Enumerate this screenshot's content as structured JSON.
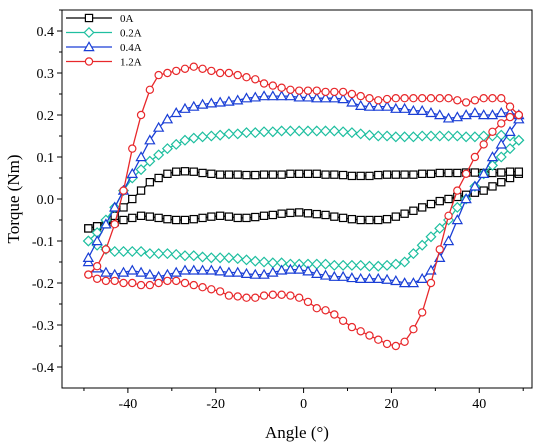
{
  "chart_data": {
    "type": "line",
    "xlabel": "Angle (°)",
    "ylabel": "Torque (Nm)",
    "xlim": [
      -55,
      52
    ],
    "ylim": [
      -0.45,
      0.45
    ],
    "xticks": [
      -40,
      -20,
      0,
      20,
      40
    ],
    "xtick_labels": [
      "-40",
      "-20",
      "0",
      "20",
      "40"
    ],
    "yticks": [
      -0.4,
      -0.3,
      -0.2,
      -0.1,
      0.0,
      0.1,
      0.2,
      0.3,
      0.4
    ],
    "ytick_labels": [
      "-0.4",
      "-0.3",
      "-0.2",
      "-0.1",
      "0.0",
      "0.1",
      "0.2",
      "0.3",
      "0.4"
    ],
    "grid": false,
    "legend_position": "top-left",
    "series": [
      {
        "name": "0A",
        "color": "#000000",
        "marker": "square",
        "x": [
          -49,
          -47,
          -45,
          -43,
          -41,
          -39,
          -37,
          -35,
          -33,
          -31,
          -29,
          -27,
          -25,
          -23,
          -21,
          -19,
          -17,
          -15,
          -13,
          -11,
          -9,
          -7,
          -5,
          -3,
          -1,
          1,
          3,
          5,
          7,
          9,
          11,
          13,
          15,
          17,
          19,
          21,
          23,
          25,
          27,
          29,
          31,
          33,
          35,
          37,
          39,
          41,
          43,
          45,
          47,
          49,
          49,
          47,
          45,
          43,
          41,
          39,
          37,
          35,
          33,
          31,
          29,
          27,
          25,
          23,
          21,
          19,
          17,
          15,
          13,
          11,
          9,
          7,
          5,
          3,
          1,
          -1,
          -3,
          -5,
          -7,
          -9,
          -11,
          -13,
          -15,
          -17,
          -19,
          -21,
          -23,
          -25,
          -27,
          -29,
          -31,
          -33,
          -35,
          -37,
          -39,
          -41,
          -43,
          -45,
          -47,
          -49
        ],
        "y": [
          -0.07,
          -0.065,
          -0.06,
          -0.055,
          -0.05,
          -0.045,
          -0.04,
          -0.042,
          -0.045,
          -0.048,
          -0.05,
          -0.05,
          -0.048,
          -0.045,
          -0.042,
          -0.04,
          -0.042,
          -0.045,
          -0.045,
          -0.043,
          -0.04,
          -0.038,
          -0.035,
          -0.033,
          -0.032,
          -0.034,
          -0.036,
          -0.038,
          -0.042,
          -0.045,
          -0.048,
          -0.05,
          -0.05,
          -0.05,
          -0.048,
          -0.042,
          -0.035,
          -0.028,
          -0.02,
          -0.012,
          -0.005,
          0.0,
          0.005,
          0.01,
          0.015,
          0.02,
          0.03,
          0.04,
          0.05,
          0.06,
          0.065,
          0.065,
          0.063,
          0.062,
          0.062,
          0.063,
          0.063,
          0.062,
          0.062,
          0.062,
          0.06,
          0.06,
          0.058,
          0.058,
          0.058,
          0.058,
          0.057,
          0.055,
          0.055,
          0.055,
          0.057,
          0.058,
          0.058,
          0.06,
          0.06,
          0.06,
          0.06,
          0.058,
          0.058,
          0.058,
          0.057,
          0.057,
          0.058,
          0.058,
          0.058,
          0.06,
          0.062,
          0.065,
          0.066,
          0.065,
          0.06,
          0.05,
          0.04,
          0.02,
          0.0,
          -0.02,
          -0.04,
          -0.06,
          -0.065,
          -0.07
        ]
      },
      {
        "name": "0.2A",
        "color": "#1fbfa0",
        "marker": "diamond",
        "x": [
          -49,
          -47,
          -45,
          -43,
          -41,
          -39,
          -37,
          -35,
          -33,
          -31,
          -29,
          -27,
          -25,
          -23,
          -21,
          -19,
          -17,
          -15,
          -13,
          -11,
          -9,
          -7,
          -5,
          -3,
          -1,
          1,
          3,
          5,
          7,
          9,
          11,
          13,
          15,
          17,
          19,
          21,
          23,
          25,
          27,
          29,
          31,
          33,
          35,
          37,
          39,
          41,
          43,
          45,
          47,
          49,
          49,
          47,
          45,
          43,
          41,
          39,
          37,
          35,
          33,
          31,
          29,
          27,
          25,
          23,
          21,
          19,
          17,
          15,
          13,
          11,
          9,
          7,
          5,
          3,
          1,
          -1,
          -3,
          -5,
          -7,
          -9,
          -11,
          -13,
          -15,
          -17,
          -19,
          -21,
          -23,
          -25,
          -27,
          -29,
          -31,
          -33,
          -35,
          -37,
          -39,
          -41,
          -43,
          -45,
          -47,
          -49
        ],
        "y": [
          -0.1,
          -0.11,
          -0.12,
          -0.125,
          -0.125,
          -0.125,
          -0.125,
          -0.13,
          -0.13,
          -0.13,
          -0.132,
          -0.135,
          -0.135,
          -0.138,
          -0.14,
          -0.14,
          -0.14,
          -0.142,
          -0.145,
          -0.148,
          -0.15,
          -0.152,
          -0.152,
          -0.155,
          -0.155,
          -0.155,
          -0.155,
          -0.155,
          -0.158,
          -0.158,
          -0.158,
          -0.158,
          -0.16,
          -0.16,
          -0.158,
          -0.155,
          -0.15,
          -0.13,
          -0.11,
          -0.09,
          -0.07,
          -0.05,
          -0.02,
          0.0,
          0.03,
          0.06,
          0.08,
          0.1,
          0.12,
          0.14,
          0.14,
          0.15,
          0.152,
          0.15,
          0.15,
          0.148,
          0.148,
          0.15,
          0.15,
          0.15,
          0.15,
          0.15,
          0.148,
          0.148,
          0.148,
          0.15,
          0.15,
          0.152,
          0.155,
          0.158,
          0.16,
          0.162,
          0.162,
          0.162,
          0.162,
          0.162,
          0.162,
          0.162,
          0.16,
          0.16,
          0.158,
          0.158,
          0.155,
          0.155,
          0.152,
          0.15,
          0.148,
          0.145,
          0.14,
          0.13,
          0.12,
          0.105,
          0.09,
          0.07,
          0.05,
          0.02,
          -0.02,
          -0.05,
          -0.08,
          -0.1
        ]
      },
      {
        "name": "0.4A",
        "color": "#1a3fd6",
        "marker": "triangle",
        "x": [
          -49,
          -47,
          -45,
          -43,
          -41,
          -39,
          -37,
          -35,
          -33,
          -31,
          -29,
          -27,
          -25,
          -23,
          -21,
          -19,
          -17,
          -15,
          -13,
          -11,
          -9,
          -7,
          -5,
          -3,
          -1,
          1,
          3,
          5,
          7,
          9,
          11,
          13,
          15,
          17,
          19,
          21,
          23,
          25,
          27,
          29,
          31,
          33,
          35,
          37,
          39,
          41,
          43,
          45,
          47,
          49,
          49,
          47,
          45,
          43,
          41,
          39,
          37,
          35,
          33,
          31,
          29,
          27,
          25,
          23,
          21,
          19,
          17,
          15,
          13,
          11,
          9,
          7,
          5,
          3,
          1,
          -1,
          -3,
          -5,
          -7,
          -9,
          -11,
          -13,
          -15,
          -17,
          -19,
          -21,
          -23,
          -25,
          -27,
          -29,
          -31,
          -33,
          -35,
          -37,
          -39,
          -41,
          -43,
          -45,
          -47,
          -49
        ],
        "y": [
          -0.15,
          -0.165,
          -0.175,
          -0.18,
          -0.175,
          -0.17,
          -0.175,
          -0.18,
          -0.185,
          -0.18,
          -0.175,
          -0.17,
          -0.17,
          -0.17,
          -0.17,
          -0.172,
          -0.175,
          -0.175,
          -0.178,
          -0.18,
          -0.18,
          -0.175,
          -0.17,
          -0.168,
          -0.168,
          -0.172,
          -0.178,
          -0.182,
          -0.185,
          -0.185,
          -0.188,
          -0.19,
          -0.19,
          -0.19,
          -0.192,
          -0.195,
          -0.2,
          -0.2,
          -0.19,
          -0.17,
          -0.14,
          -0.1,
          -0.05,
          0.0,
          0.03,
          0.06,
          0.1,
          0.13,
          0.16,
          0.19,
          0.2,
          0.205,
          0.205,
          0.2,
          0.2,
          0.205,
          0.2,
          0.195,
          0.192,
          0.2,
          0.205,
          0.21,
          0.21,
          0.215,
          0.215,
          0.22,
          0.22,
          0.22,
          0.222,
          0.23,
          0.238,
          0.24,
          0.24,
          0.24,
          0.242,
          0.242,
          0.245,
          0.245,
          0.245,
          0.245,
          0.242,
          0.24,
          0.235,
          0.232,
          0.23,
          0.228,
          0.225,
          0.22,
          0.215,
          0.205,
          0.19,
          0.17,
          0.14,
          0.1,
          0.06,
          0.02,
          -0.02,
          -0.06,
          -0.1,
          -0.14
        ]
      },
      {
        "name": "1.2A",
        "color": "#e8282b",
        "marker": "circle",
        "x": [
          -49,
          -47,
          -45,
          -43,
          -41,
          -39,
          -37,
          -35,
          -33,
          -31,
          -29,
          -27,
          -25,
          -23,
          -21,
          -19,
          -17,
          -15,
          -13,
          -11,
          -9,
          -7,
          -5,
          -3,
          -1,
          1,
          3,
          5,
          7,
          9,
          11,
          13,
          15,
          17,
          19,
          21,
          23,
          25,
          27,
          29,
          31,
          33,
          35,
          37,
          39,
          41,
          43,
          45,
          47,
          49,
          49,
          47,
          45,
          43,
          41,
          39,
          37,
          35,
          33,
          31,
          29,
          27,
          25,
          23,
          21,
          19,
          17,
          15,
          13,
          11,
          9,
          7,
          5,
          3,
          1,
          -1,
          -3,
          -5,
          -7,
          -9,
          -11,
          -13,
          -15,
          -17,
          -19,
          -21,
          -23,
          -25,
          -27,
          -29,
          -31,
          -33,
          -35,
          -37,
          -39,
          -41,
          -43,
          -45,
          -47,
          -49
        ],
        "y": [
          -0.18,
          -0.19,
          -0.195,
          -0.195,
          -0.2,
          -0.2,
          -0.205,
          -0.205,
          -0.2,
          -0.195,
          -0.195,
          -0.2,
          -0.205,
          -0.21,
          -0.215,
          -0.22,
          -0.23,
          -0.232,
          -0.235,
          -0.235,
          -0.23,
          -0.228,
          -0.228,
          -0.23,
          -0.235,
          -0.245,
          -0.26,
          -0.265,
          -0.275,
          -0.29,
          -0.305,
          -0.315,
          -0.325,
          -0.335,
          -0.345,
          -0.35,
          -0.34,
          -0.31,
          -0.27,
          -0.2,
          -0.12,
          -0.04,
          0.02,
          0.06,
          0.1,
          0.13,
          0.16,
          0.18,
          0.195,
          0.2,
          0.2,
          0.22,
          0.24,
          0.24,
          0.24,
          0.235,
          0.23,
          0.235,
          0.24,
          0.24,
          0.24,
          0.24,
          0.24,
          0.24,
          0.24,
          0.238,
          0.235,
          0.24,
          0.245,
          0.25,
          0.255,
          0.255,
          0.255,
          0.258,
          0.258,
          0.258,
          0.26,
          0.265,
          0.27,
          0.275,
          0.285,
          0.29,
          0.295,
          0.3,
          0.3,
          0.305,
          0.31,
          0.315,
          0.31,
          0.305,
          0.3,
          0.295,
          0.26,
          0.2,
          0.12,
          0.02,
          -0.06,
          -0.12,
          -0.16,
          -0.18
        ]
      }
    ]
  }
}
